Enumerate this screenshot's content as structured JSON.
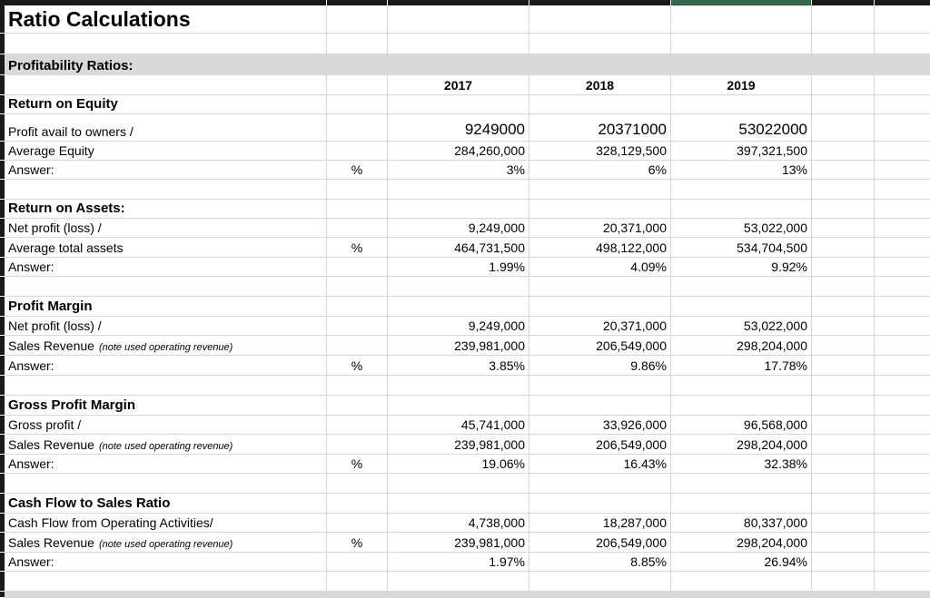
{
  "app": {
    "title": "Ratio Calculations"
  },
  "section_band": {
    "label": "Profitability Ratios:"
  },
  "year_headers": [
    "2017",
    "2018",
    "2019"
  ],
  "sections": [
    {
      "title": "Return on Equity",
      "rows": [
        {
          "label": "Profit avail to owners /",
          "values": [
            "9249000",
            "20371000",
            "53022000"
          ],
          "large_values": true
        },
        {
          "label": "Average Equity",
          "values": [
            "284,260,000",
            "328,129,500",
            "397,321,500"
          ]
        },
        {
          "label": "Answer:",
          "pct": "%",
          "values": [
            "3%",
            "6%",
            "13%"
          ]
        }
      ]
    },
    {
      "title": "Return on Assets:",
      "rows": [
        {
          "label": "Net profit (loss) /",
          "values": [
            "9,249,000",
            "20,371,000",
            "53,022,000"
          ]
        },
        {
          "label": "Average total assets",
          "pct": "%",
          "values": [
            "464,731,500",
            "498,122,000",
            "534,704,500"
          ]
        },
        {
          "label": "Answer:",
          "values": [
            "1.99%",
            "4.09%",
            "9.92%"
          ]
        }
      ]
    },
    {
      "title": "Profit Margin",
      "rows": [
        {
          "label": "Net profit (loss) /",
          "values": [
            "9,249,000",
            "20,371,000",
            "53,022,000"
          ]
        },
        {
          "label": "Sales Revenue",
          "note": "(note used operating revenue)",
          "values": [
            "239,981,000",
            "206,549,000",
            "298,204,000"
          ]
        },
        {
          "label": "Answer:",
          "pct": "%",
          "values": [
            "3.85%",
            "9.86%",
            "17.78%"
          ]
        }
      ]
    },
    {
      "title": "Gross Profit Margin",
      "rows": [
        {
          "label": "Gross profit /",
          "values": [
            "45,741,000",
            "33,926,000",
            "96,568,000"
          ]
        },
        {
          "label": "Sales Revenue",
          "note": "(note used operating revenue)",
          "values": [
            "239,981,000",
            "206,549,000",
            "298,204,000"
          ]
        },
        {
          "label": "Answer:",
          "pct": "%",
          "values": [
            "19.06%",
            "16.43%",
            "32.38%"
          ]
        }
      ]
    },
    {
      "title": "Cash Flow to Sales Ratio",
      "rows": [
        {
          "label": "Cash Flow from Operating Activities/",
          "values": [
            "4,738,000",
            "18,287,000",
            "80,337,000"
          ]
        },
        {
          "label": "Sales Revenue",
          "note": "(note used operating revenue)",
          "pct": "%",
          "values": [
            "239,981,000",
            "206,549,000",
            "298,204,000"
          ]
        },
        {
          "label": "Answer:",
          "values": [
            "1.97%",
            "8.85%",
            "26.94%"
          ]
        }
      ]
    }
  ],
  "colors": {
    "top_border": "#1a1a1a",
    "selection_green": "#2e6b4f",
    "band_gray": "#d9d9d9",
    "gridline": "#d6d6d6"
  }
}
